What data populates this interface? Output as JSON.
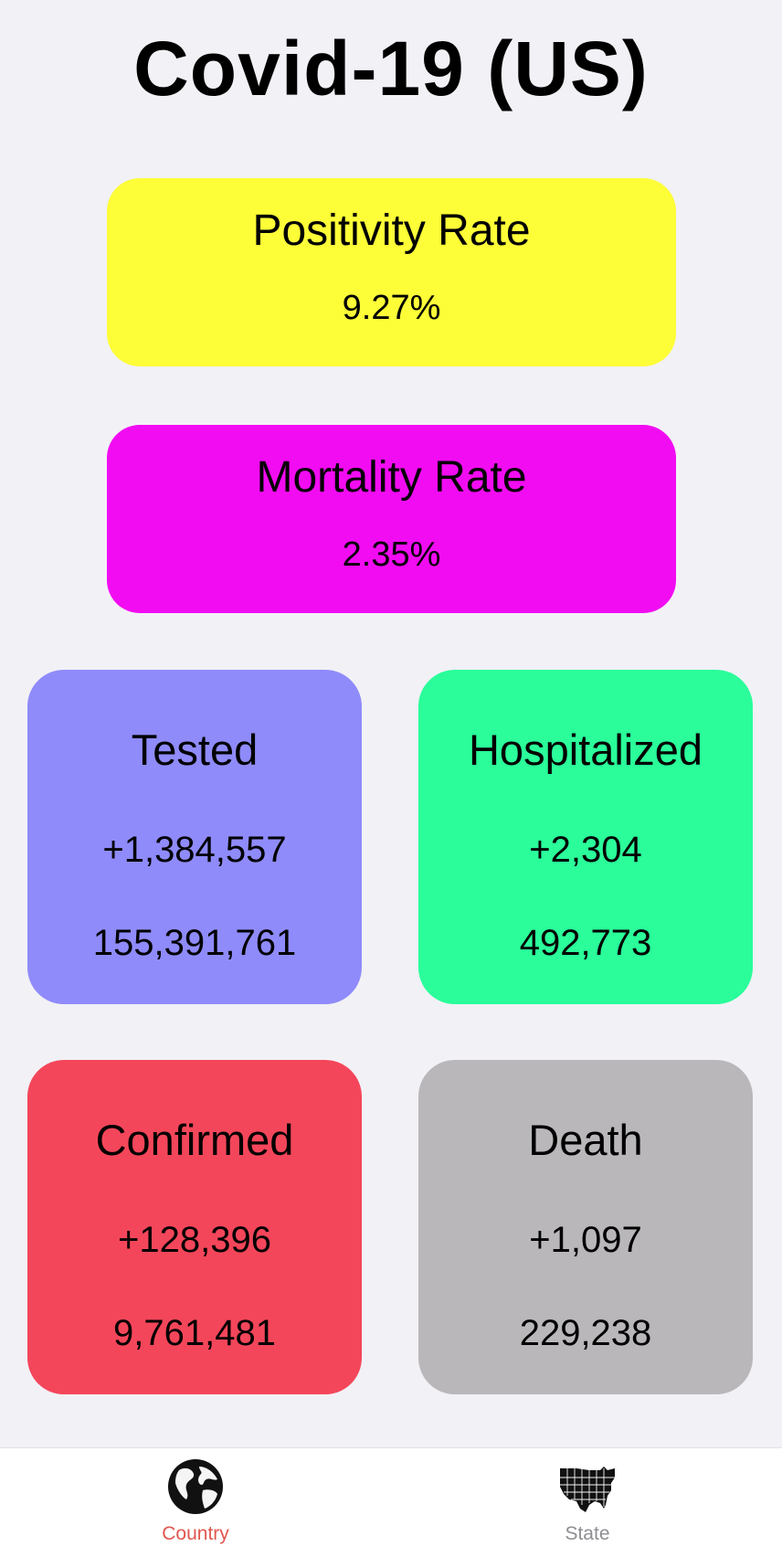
{
  "header": {
    "title": "Covid-19 (US)"
  },
  "colors": {
    "positivity_bg": "#fdfd38",
    "mortality_bg": "#f20cf2",
    "tested_bg": "#8f8bfa",
    "hospitalized_bg": "#2afd9a",
    "confirmed_bg": "#f4465a",
    "death_bg": "#b9b7ba",
    "tab_active": "#e1574f",
    "tab_inactive": "#8e8e93"
  },
  "rates": {
    "positivity": {
      "label": "Positivity Rate",
      "value": "9.27%"
    },
    "mortality": {
      "label": "Mortality Rate",
      "value": "2.35%"
    }
  },
  "stats": {
    "tested": {
      "label": "Tested",
      "delta": "+1,384,557",
      "total": "155,391,761"
    },
    "hospitalized": {
      "label": "Hospitalized",
      "delta": "+2,304",
      "total": "492,773"
    },
    "confirmed": {
      "label": "Confirmed",
      "delta": "+128,396",
      "total": "9,761,481"
    },
    "death": {
      "label": "Death",
      "delta": "+1,097",
      "total": "229,238"
    }
  },
  "tab_bar": {
    "items": [
      {
        "label": "Country",
        "icon": "globe-icon",
        "selected": true
      },
      {
        "label": "State",
        "icon": "us-map-icon",
        "selected": false
      }
    ]
  }
}
